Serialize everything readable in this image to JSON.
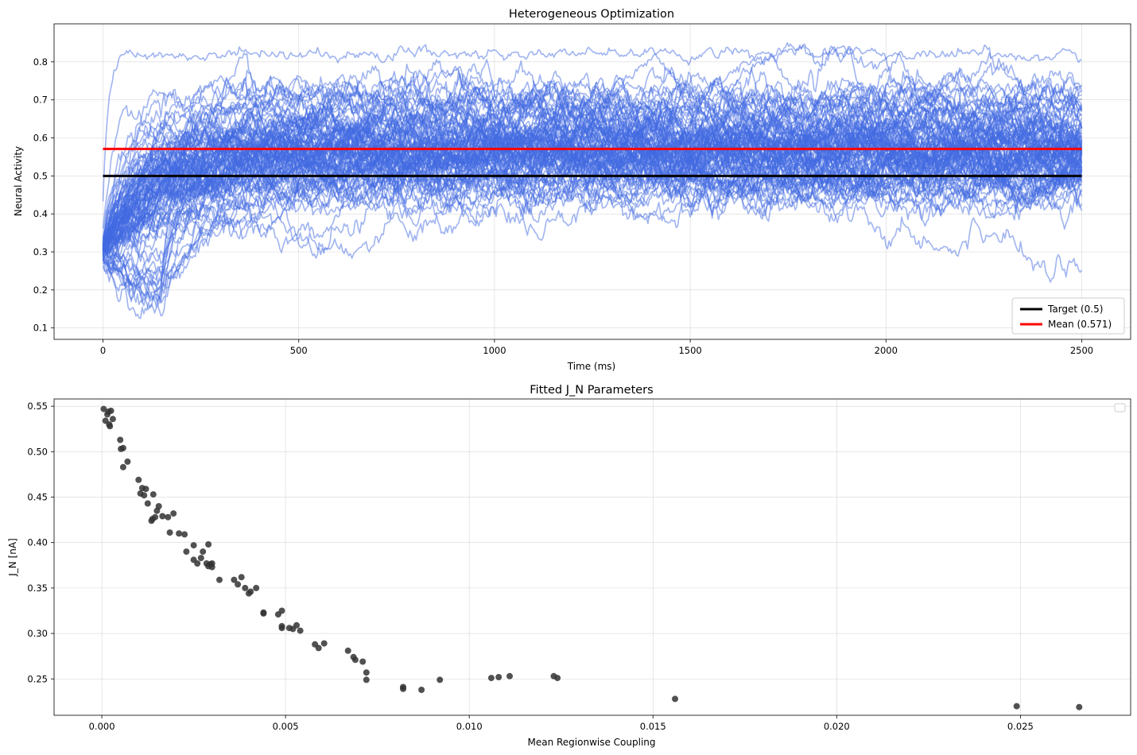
{
  "chart_data": [
    {
      "type": "line",
      "title": "Heterogeneous Optimization",
      "xlabel": "Time (ms)",
      "ylabel": "Neural Activity",
      "xlim": [
        -125,
        2625
      ],
      "ylim": [
        0.07,
        0.9
      ],
      "xticks": [
        0,
        500,
        1000,
        1500,
        2000,
        2500
      ],
      "yticks": [
        0.1,
        0.2,
        0.3,
        0.4,
        0.5,
        0.6,
        0.7,
        0.8
      ],
      "grid": true,
      "legend_position": "lower-right",
      "trace_color": "#4169e1",
      "trace_start": 0.3,
      "trace_count": 100,
      "time_range": [
        0,
        2500
      ],
      "typical_band": [
        0.5,
        0.62
      ],
      "outlier_level": 0.82,
      "series": [
        {
          "name": "Target (0.5)",
          "color": "#000000",
          "x": [
            0,
            2500
          ],
          "y": [
            0.5,
            0.5
          ]
        },
        {
          "name": "Mean (0.571)",
          "color": "#ff0000",
          "x": [
            0,
            2500
          ],
          "y": [
            0.571,
            0.571
          ]
        }
      ]
    },
    {
      "type": "scatter",
      "title": "Fitted J_N Parameters",
      "xlabel": "Mean Regionwise Coupling",
      "ylabel": "J_N [nA]",
      "xlim": [
        -0.0013,
        0.028
      ],
      "ylim": [
        0.21,
        0.558
      ],
      "xticks": [
        0.0,
        0.005,
        0.01,
        0.015,
        0.02,
        0.025
      ],
      "xtick_labels": [
        "0.000",
        "0.005",
        "0.010",
        "0.015",
        "0.020",
        "0.025"
      ],
      "yticks": [
        0.25,
        0.3,
        0.35,
        0.4,
        0.45,
        0.5,
        0.55
      ],
      "ytick_labels": [
        "0.25",
        "0.30",
        "0.35",
        "0.40",
        "0.45",
        "0.50",
        "0.55"
      ],
      "grid": true,
      "legend_position": "upper-right",
      "point_color": "#333333",
      "points": [
        [
          5e-05,
          0.547
        ],
        [
          0.0001,
          0.534
        ],
        [
          0.00015,
          0.541
        ],
        [
          0.0002,
          0.53
        ],
        [
          0.00025,
          0.545
        ],
        [
          0.0003,
          0.536
        ],
        [
          0.00022,
          0.528
        ],
        [
          0.00018,
          0.544
        ],
        [
          0.0005,
          0.513
        ],
        [
          0.00052,
          0.503
        ],
        [
          0.00058,
          0.504
        ],
        [
          0.00058,
          0.483
        ],
        [
          0.0007,
          0.489
        ],
        [
          0.001,
          0.469
        ],
        [
          0.00105,
          0.454
        ],
        [
          0.0011,
          0.46
        ],
        [
          0.00115,
          0.452
        ],
        [
          0.0012,
          0.459
        ],
        [
          0.00125,
          0.443
        ],
        [
          0.00135,
          0.424
        ],
        [
          0.00138,
          0.426
        ],
        [
          0.0014,
          0.453
        ],
        [
          0.00145,
          0.428
        ],
        [
          0.0015,
          0.435
        ],
        [
          0.00155,
          0.44
        ],
        [
          0.00165,
          0.429
        ],
        [
          0.0018,
          0.428
        ],
        [
          0.00195,
          0.432
        ],
        [
          0.00185,
          0.411
        ],
        [
          0.0021,
          0.41
        ],
        [
          0.00225,
          0.409
        ],
        [
          0.0023,
          0.39
        ],
        [
          0.0025,
          0.397
        ],
        [
          0.0025,
          0.381
        ],
        [
          0.0026,
          0.377
        ],
        [
          0.0027,
          0.383
        ],
        [
          0.00275,
          0.39
        ],
        [
          0.00285,
          0.377
        ],
        [
          0.0029,
          0.398
        ],
        [
          0.0029,
          0.374
        ],
        [
          0.00295,
          0.376
        ],
        [
          0.003,
          0.373
        ],
        [
          0.003,
          0.377
        ],
        [
          0.0032,
          0.359
        ],
        [
          0.0036,
          0.359
        ],
        [
          0.0037,
          0.354
        ],
        [
          0.0038,
          0.362
        ],
        [
          0.0039,
          0.35
        ],
        [
          0.004,
          0.344
        ],
        [
          0.00405,
          0.346
        ],
        [
          0.0042,
          0.35
        ],
        [
          0.0044,
          0.323
        ],
        [
          0.0044,
          0.322
        ],
        [
          0.0048,
          0.321
        ],
        [
          0.0049,
          0.325
        ],
        [
          0.0049,
          0.308
        ],
        [
          0.0049,
          0.306
        ],
        [
          0.0051,
          0.306
        ],
        [
          0.0052,
          0.305
        ],
        [
          0.0053,
          0.309
        ],
        [
          0.0054,
          0.303
        ],
        [
          0.0058,
          0.288
        ],
        [
          0.0059,
          0.284
        ],
        [
          0.00605,
          0.289
        ],
        [
          0.0067,
          0.281
        ],
        [
          0.00685,
          0.274
        ],
        [
          0.0069,
          0.271
        ],
        [
          0.0071,
          0.269
        ],
        [
          0.0072,
          0.257
        ],
        [
          0.0072,
          0.249
        ],
        [
          0.0082,
          0.241
        ],
        [
          0.0082,
          0.239
        ],
        [
          0.0087,
          0.238
        ],
        [
          0.0092,
          0.249
        ],
        [
          0.0106,
          0.251
        ],
        [
          0.0108,
          0.252
        ],
        [
          0.0111,
          0.253
        ],
        [
          0.0123,
          0.253
        ],
        [
          0.0124,
          0.251
        ],
        [
          0.0156,
          0.228
        ],
        [
          0.0249,
          0.22
        ],
        [
          0.0266,
          0.219
        ]
      ]
    }
  ]
}
